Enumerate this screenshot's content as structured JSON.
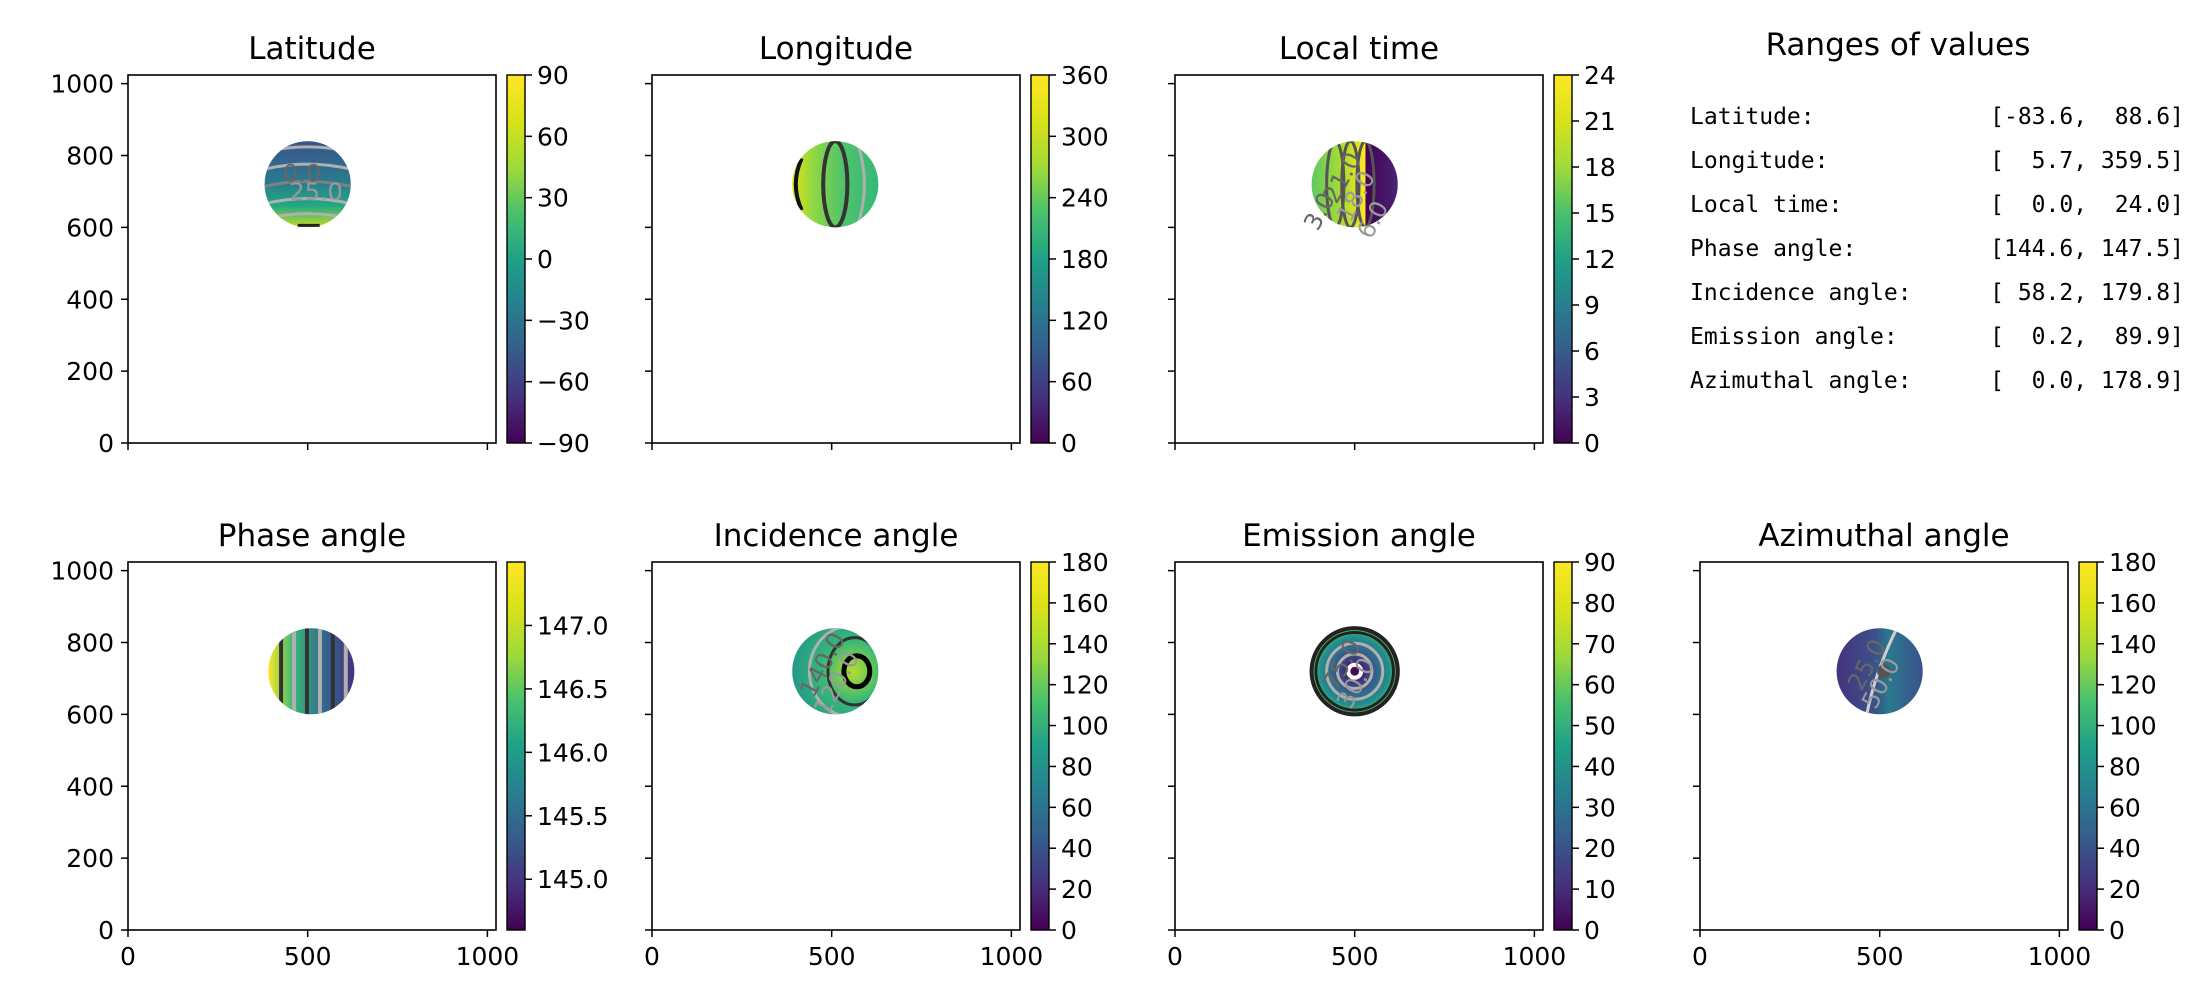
{
  "figure": {
    "ranges_title": "Ranges of values",
    "ranges": [
      {
        "label": "Latitude:",
        "value": "[-83.6,  88.6]"
      },
      {
        "label": "Longitude:",
        "value": "[  5.7, 359.5]"
      },
      {
        "label": "Local time:",
        "value": "[  0.0,  24.0]"
      },
      {
        "label": "Phase angle:",
        "value": "[144.6, 147.5]"
      },
      {
        "label": "Incidence angle:",
        "value": "[ 58.2, 179.8]"
      },
      {
        "label": "Emission angle:",
        "value": "[  0.2,  89.9]"
      },
      {
        "label": "Azimuthal angle:",
        "value": "[  0.0, 178.9]"
      }
    ]
  },
  "chart_data": [
    {
      "type": "heatmap",
      "title": "Latitude",
      "xlim": [
        0,
        1024
      ],
      "ylim": [
        0,
        1024
      ],
      "xticks": [
        0,
        500,
        1000
      ],
      "yticks": [
        0,
        200,
        400,
        600,
        800,
        1000
      ],
      "show_x_ticklabels": false,
      "show_y_ticklabels": true,
      "colorbar": {
        "range": [
          -90,
          90
        ],
        "ticks": [
          -90,
          -60,
          -30,
          0,
          30,
          60,
          90
        ],
        "ticklabels": [
          "−90",
          "−60",
          "−30",
          "0",
          "30",
          "60",
          "90"
        ]
      },
      "disk": {
        "center": [
          500,
          720
        ],
        "radius": 120
      },
      "contour_labels": [
        "0.0",
        "25.0"
      ]
    },
    {
      "type": "heatmap",
      "title": "Longitude",
      "xlim": [
        0,
        1024
      ],
      "ylim": [
        0,
        1024
      ],
      "xticks": [
        0,
        500,
        1000
      ],
      "yticks": [
        0,
        200,
        400,
        600,
        800,
        1000
      ],
      "show_x_ticklabels": false,
      "show_y_ticklabels": false,
      "colorbar": {
        "range": [
          0,
          360
        ],
        "ticks": [
          0,
          60,
          120,
          180,
          240,
          300,
          360
        ],
        "ticklabels": [
          "0",
          "60",
          "120",
          "180",
          "240",
          "300",
          "360"
        ]
      },
      "disk": {
        "center": [
          510,
          720
        ],
        "radius": 120
      },
      "contour_labels": []
    },
    {
      "type": "heatmap",
      "title": "Local time",
      "xlim": [
        0,
        1024
      ],
      "ylim": [
        0,
        1024
      ],
      "xticks": [
        0,
        500,
        1000
      ],
      "yticks": [
        0,
        200,
        400,
        600,
        800,
        1000
      ],
      "show_x_ticklabels": false,
      "show_y_ticklabels": false,
      "colorbar": {
        "range": [
          0,
          24
        ],
        "ticks": [
          0,
          3,
          6,
          9,
          12,
          15,
          18,
          21,
          24
        ],
        "ticklabels": [
          "0",
          "3",
          "6",
          "9",
          "12",
          "15",
          "18",
          "21",
          "24"
        ]
      },
      "disk": {
        "center": [
          500,
          720
        ],
        "radius": 120
      },
      "contour_labels": [
        "21.0",
        "18.0",
        "3.0",
        "6.0"
      ]
    },
    {
      "type": "heatmap",
      "title": "Phase angle",
      "xlim": [
        0,
        1024
      ],
      "ylim": [
        0,
        1024
      ],
      "xticks": [
        0,
        500,
        1000
      ],
      "yticks": [
        0,
        200,
        400,
        600,
        800,
        1000
      ],
      "show_x_ticklabels": true,
      "show_y_ticklabels": true,
      "colorbar": {
        "range": [
          144.6,
          147.5
        ],
        "ticks": [
          145.0,
          145.5,
          146.0,
          146.5,
          147.0
        ],
        "ticklabels": [
          "145.0",
          "145.5",
          "146.0",
          "146.5",
          "147.0"
        ]
      },
      "disk": {
        "center": [
          510,
          720
        ],
        "radius": 120
      },
      "contour_labels": []
    },
    {
      "type": "heatmap",
      "title": "Incidence angle",
      "xlim": [
        0,
        1024
      ],
      "ylim": [
        0,
        1024
      ],
      "xticks": [
        0,
        500,
        1000
      ],
      "yticks": [
        0,
        200,
        400,
        600,
        800,
        1000
      ],
      "show_x_ticklabels": true,
      "show_y_ticklabels": false,
      "colorbar": {
        "range": [
          0,
          180
        ],
        "ticks": [
          0,
          20,
          40,
          60,
          80,
          100,
          120,
          140,
          160,
          180
        ],
        "ticklabels": [
          "0",
          "20",
          "40",
          "60",
          "80",
          "100",
          "120",
          "140",
          "160",
          "180"
        ]
      },
      "disk": {
        "center": [
          510,
          720
        ],
        "radius": 120
      },
      "contour_labels": [
        "140.0",
        "120.0"
      ]
    },
    {
      "type": "heatmap",
      "title": "Emission angle",
      "xlim": [
        0,
        1024
      ],
      "ylim": [
        0,
        1024
      ],
      "xticks": [
        0,
        500,
        1000
      ],
      "yticks": [
        0,
        200,
        400,
        600,
        800,
        1000
      ],
      "show_x_ticklabels": true,
      "show_y_ticklabels": false,
      "colorbar": {
        "range": [
          0,
          90
        ],
        "ticks": [
          0,
          10,
          20,
          30,
          40,
          50,
          60,
          70,
          80,
          90
        ],
        "ticklabels": [
          "0",
          "10",
          "20",
          "30",
          "40",
          "50",
          "60",
          "70",
          "80",
          "90"
        ]
      },
      "disk": {
        "center": [
          500,
          720
        ],
        "radius": 120
      },
      "contour_labels": [
        "75.0",
        "30.0"
      ]
    },
    {
      "type": "heatmap",
      "title": "Azimuthal angle",
      "xlim": [
        0,
        1024
      ],
      "ylim": [
        0,
        1024
      ],
      "xticks": [
        0,
        500,
        1000
      ],
      "yticks": [
        0,
        200,
        400,
        600,
        800,
        1000
      ],
      "show_x_ticklabels": true,
      "show_y_ticklabels": false,
      "colorbar": {
        "range": [
          0,
          180
        ],
        "ticks": [
          0,
          20,
          40,
          60,
          80,
          100,
          120,
          140,
          160,
          180
        ],
        "ticklabels": [
          "0",
          "20",
          "40",
          "60",
          "80",
          "100",
          "120",
          "140",
          "160",
          "180"
        ]
      },
      "disk": {
        "center": [
          500,
          720
        ],
        "radius": 120
      },
      "contour_labels": [
        "25.0",
        "50.0"
      ]
    }
  ]
}
